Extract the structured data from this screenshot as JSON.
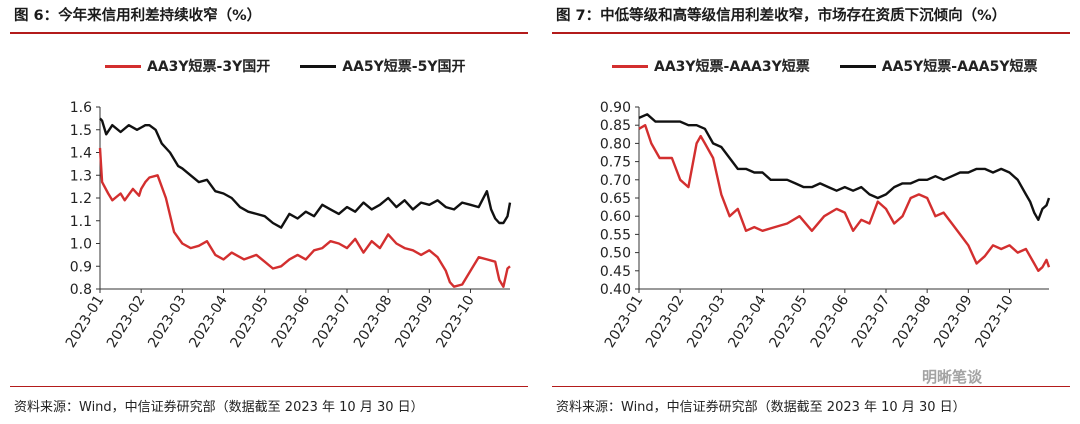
{
  "panels": [
    {
      "title": "图 6：今年来信用利差持续收窄（%）",
      "source": "资料来源：Wind，中信证券研究部（数据截至 2023 年 10 月 30 日）"
    },
    {
      "title": "图 7：中低等级和高等级信用利差收窄，市场存在资质下沉倾向（%）",
      "source": "资料来源：Wind，中信证券研究部（数据截至 2023 年 10 月 30 日）"
    }
  ],
  "watermark": "明晰笔谈",
  "chart_data": [
    {
      "type": "line",
      "title": "图 6：今年来信用利差持续收窄（%）",
      "x_categories": [
        "2023-01",
        "2023-02",
        "2023-03",
        "2023-04",
        "2023-05",
        "2023-06",
        "2023-07",
        "2023-08",
        "2023-09",
        "2023-10"
      ],
      "ylim": [
        0.8,
        1.6
      ],
      "yticks": [
        "1.6",
        "1.5",
        "1.4",
        "1.3",
        "1.2",
        "1.1",
        "1.0",
        "0.9",
        "0.8"
      ],
      "legend_position": "top",
      "grid": false,
      "series": [
        {
          "name": "AA3Y短票-3Y国开",
          "color": "#d32f2f",
          "x": [
            0,
            0.05,
            0.2,
            0.3,
            0.5,
            0.6,
            0.8,
            0.95,
            1.0,
            1.1,
            1.2,
            1.4,
            1.6,
            1.8,
            2.0,
            2.2,
            2.4,
            2.6,
            2.8,
            3.0,
            3.2,
            3.5,
            3.8,
            4.0,
            4.2,
            4.4,
            4.6,
            4.8,
            5.0,
            5.2,
            5.4,
            5.6,
            5.8,
            6.0,
            6.2,
            6.4,
            6.6,
            6.8,
            7.0,
            7.2,
            7.4,
            7.6,
            7.8,
            8.0,
            8.2,
            8.4,
            8.5,
            8.6,
            8.8,
            9.0,
            9.2,
            9.4,
            9.6,
            9.7,
            9.8,
            9.9,
            9.96
          ],
          "values": [
            1.42,
            1.27,
            1.22,
            1.19,
            1.22,
            1.19,
            1.24,
            1.21,
            1.24,
            1.27,
            1.29,
            1.3,
            1.2,
            1.05,
            1.0,
            0.98,
            0.99,
            1.01,
            0.95,
            0.93,
            0.96,
            0.93,
            0.95,
            0.92,
            0.89,
            0.9,
            0.93,
            0.95,
            0.93,
            0.97,
            0.98,
            1.01,
            1.0,
            0.98,
            1.02,
            0.96,
            1.01,
            0.98,
            1.04,
            1.0,
            0.98,
            0.97,
            0.95,
            0.97,
            0.94,
            0.88,
            0.83,
            0.81,
            0.82,
            0.88,
            0.94,
            0.93,
            0.92,
            0.84,
            0.81,
            0.89,
            0.9
          ]
        },
        {
          "name": "AA5Y短票-5Y国开",
          "color": "#111111",
          "x": [
            0,
            0.05,
            0.15,
            0.3,
            0.5,
            0.7,
            0.9,
            1.0,
            1.1,
            1.2,
            1.35,
            1.5,
            1.7,
            1.9,
            2.0,
            2.2,
            2.4,
            2.6,
            2.8,
            3.0,
            3.2,
            3.4,
            3.6,
            3.8,
            4.0,
            4.2,
            4.4,
            4.6,
            4.8,
            5.0,
            5.2,
            5.4,
            5.6,
            5.8,
            6.0,
            6.2,
            6.4,
            6.6,
            6.8,
            7.0,
            7.2,
            7.4,
            7.6,
            7.8,
            8.0,
            8.2,
            8.4,
            8.6,
            8.8,
            9.0,
            9.2,
            9.4,
            9.5,
            9.6,
            9.7,
            9.8,
            9.9,
            9.96
          ],
          "values": [
            1.55,
            1.54,
            1.48,
            1.52,
            1.49,
            1.52,
            1.5,
            1.51,
            1.52,
            1.52,
            1.5,
            1.44,
            1.4,
            1.34,
            1.33,
            1.3,
            1.27,
            1.28,
            1.23,
            1.22,
            1.2,
            1.16,
            1.14,
            1.13,
            1.12,
            1.09,
            1.07,
            1.13,
            1.11,
            1.14,
            1.12,
            1.17,
            1.15,
            1.13,
            1.16,
            1.14,
            1.18,
            1.15,
            1.17,
            1.2,
            1.16,
            1.19,
            1.15,
            1.18,
            1.17,
            1.19,
            1.16,
            1.15,
            1.18,
            1.17,
            1.16,
            1.23,
            1.15,
            1.11,
            1.09,
            1.09,
            1.12,
            1.18
          ]
        }
      ]
    },
    {
      "type": "line",
      "title": "图 7：中低等级和高等级信用利差收窄，市场存在资质下沉倾向（%）",
      "x_categories": [
        "2023-01",
        "2023-02",
        "2023-03",
        "2023-04",
        "2023-05",
        "2023-06",
        "2023-07",
        "2023-08",
        "2023-09",
        "2023-10"
      ],
      "ylim": [
        0.4,
        0.9
      ],
      "yticks": [
        "0.90",
        "0.85",
        "0.80",
        "0.75",
        "0.70",
        "0.65",
        "0.60",
        "0.55",
        "0.50",
        "0.45",
        "0.40"
      ],
      "legend_position": "top",
      "grid": false,
      "series": [
        {
          "name": "AA3Y短票-AAA3Y短票",
          "color": "#d32f2f",
          "x": [
            0,
            0.15,
            0.3,
            0.5,
            0.8,
            1.0,
            1.2,
            1.4,
            1.5,
            1.6,
            1.8,
            2.0,
            2.2,
            2.4,
            2.6,
            2.8,
            3.0,
            3.3,
            3.6,
            3.9,
            4.2,
            4.5,
            4.8,
            5.0,
            5.2,
            5.4,
            5.6,
            5.8,
            6.0,
            6.2,
            6.4,
            6.6,
            6.8,
            7.0,
            7.2,
            7.4,
            7.6,
            7.8,
            8.0,
            8.2,
            8.4,
            8.6,
            8.8,
            9.0,
            9.2,
            9.4,
            9.6,
            9.7,
            9.8,
            9.9,
            9.96
          ],
          "values": [
            0.84,
            0.85,
            0.8,
            0.76,
            0.76,
            0.7,
            0.68,
            0.8,
            0.82,
            0.8,
            0.76,
            0.66,
            0.6,
            0.62,
            0.56,
            0.57,
            0.56,
            0.57,
            0.58,
            0.6,
            0.56,
            0.6,
            0.62,
            0.61,
            0.56,
            0.59,
            0.58,
            0.64,
            0.62,
            0.58,
            0.6,
            0.65,
            0.66,
            0.65,
            0.6,
            0.61,
            0.58,
            0.55,
            0.52,
            0.47,
            0.49,
            0.52,
            0.51,
            0.52,
            0.5,
            0.51,
            0.47,
            0.45,
            0.46,
            0.48,
            0.46
          ]
        },
        {
          "name": "AA5Y短票-AAA5Y短票",
          "color": "#111111",
          "x": [
            0,
            0.2,
            0.4,
            0.6,
            0.8,
            1.0,
            1.2,
            1.4,
            1.6,
            1.8,
            2.0,
            2.2,
            2.4,
            2.6,
            2.8,
            3.0,
            3.2,
            3.4,
            3.6,
            3.8,
            4.0,
            4.2,
            4.4,
            4.6,
            4.8,
            5.0,
            5.2,
            5.4,
            5.6,
            5.8,
            6.0,
            6.2,
            6.4,
            6.6,
            6.8,
            7.0,
            7.2,
            7.4,
            7.6,
            7.8,
            8.0,
            8.2,
            8.4,
            8.6,
            8.8,
            9.0,
            9.2,
            9.4,
            9.5,
            9.6,
            9.7,
            9.8,
            9.9,
            9.96
          ],
          "values": [
            0.87,
            0.88,
            0.86,
            0.86,
            0.86,
            0.86,
            0.85,
            0.85,
            0.84,
            0.8,
            0.79,
            0.76,
            0.73,
            0.73,
            0.72,
            0.72,
            0.7,
            0.7,
            0.7,
            0.69,
            0.68,
            0.68,
            0.69,
            0.68,
            0.67,
            0.68,
            0.67,
            0.68,
            0.66,
            0.65,
            0.66,
            0.68,
            0.69,
            0.69,
            0.7,
            0.7,
            0.71,
            0.7,
            0.71,
            0.72,
            0.72,
            0.73,
            0.73,
            0.72,
            0.73,
            0.72,
            0.7,
            0.66,
            0.64,
            0.61,
            0.59,
            0.62,
            0.63,
            0.65
          ]
        }
      ]
    }
  ]
}
